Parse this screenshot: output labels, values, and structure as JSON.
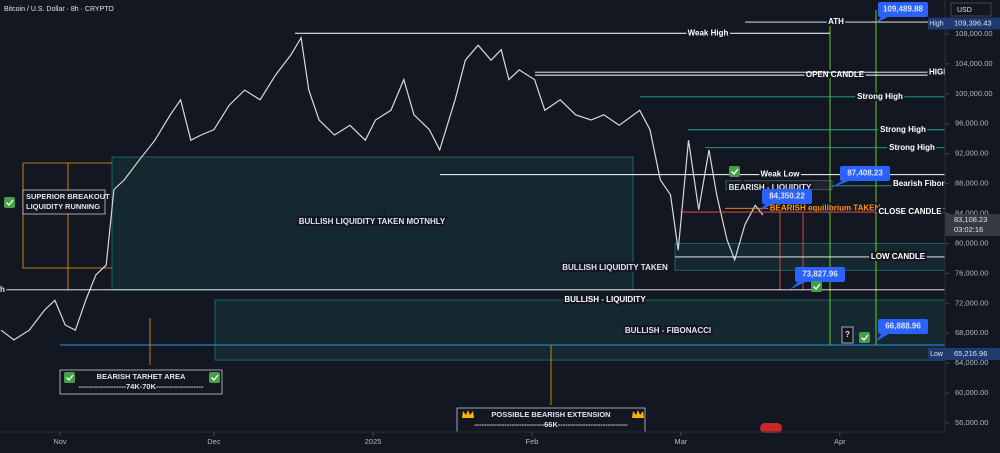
{
  "chart_data": {
    "type": "line",
    "title": "Bitcoin / U.S. Dollar · 8h · CRYPTO",
    "currency": "USD",
    "color": "#d9d9d9",
    "x": [
      -11.5,
      -9,
      -6,
      -3,
      -1,
      1,
      3,
      5,
      7,
      9,
      10.5,
      12.5,
      15.5,
      18.5,
      21.5,
      23.5,
      25.5,
      27.5,
      30,
      33,
      36,
      39,
      42,
      45,
      47,
      48.5,
      50.5,
      53.5,
      56.5,
      59.5,
      61.5,
      64.5,
      67,
      69,
      72,
      74,
      77,
      79,
      81.5,
      84,
      86,
      87.5,
      89.5,
      92.5,
      94.5,
      97.5,
      100.5,
      103.5,
      106,
      109,
      113,
      115,
      117,
      119,
      120.5,
      122.5,
      124.5,
      126.5,
      128,
      130,
      131.5,
      133.5,
      135.5,
      137
    ],
    "values": [
      68400,
      67100,
      68400,
      71100,
      72400,
      69100,
      68400,
      72400,
      75800,
      77100,
      87200,
      88500,
      91200,
      93800,
      97200,
      99200,
      93800,
      94500,
      95200,
      98500,
      100500,
      99200,
      102500,
      105200,
      107500,
      100500,
      96500,
      94500,
      95800,
      93800,
      96500,
      97800,
      101900,
      97200,
      95200,
      92500,
      99200,
      104500,
      106500,
      104500,
      105900,
      101900,
      103200,
      101900,
      97800,
      99200,
      97200,
      96500,
      97200,
      95800,
      97800,
      95200,
      88500,
      86500,
      79100,
      93800,
      84500,
      92500,
      86500,
      80500,
      77800,
      82500,
      85100,
      83800
    ],
    "xlim": [
      -11.7,
      172.5
    ],
    "ylim": [
      54790,
      112545
    ],
    "xticks": [
      {
        "value": 0,
        "label": "Nov"
      },
      {
        "value": 30,
        "label": "Dec"
      },
      {
        "value": 61,
        "label": "2025"
      },
      {
        "value": 92,
        "label": "Feb"
      },
      {
        "value": 121,
        "label": "Mar"
      },
      {
        "value": 152,
        "label": "Apr"
      }
    ],
    "yticks": [
      {
        "value": 56000,
        "label": "56,000.00"
      },
      {
        "value": 60000,
        "label": "60,000.00"
      },
      {
        "value": 64000,
        "label": "64,000.00"
      },
      {
        "value": 68000,
        "label": "68,000.00"
      },
      {
        "value": 72000,
        "label": "72,000.00"
      },
      {
        "value": 76000,
        "label": "76,000.00"
      },
      {
        "value": 80000,
        "label": "80,000.00"
      },
      {
        "value": 84000,
        "label": "84,000.00"
      },
      {
        "value": 88000,
        "label": "88,000.00"
      },
      {
        "value": 92000,
        "label": "92,000.00"
      },
      {
        "value": 96000,
        "label": "96,000.00"
      },
      {
        "value": 100000,
        "label": "100,000.00"
      },
      {
        "value": 104000,
        "label": "104,000.00"
      },
      {
        "value": 108000,
        "label": "108,000.00"
      }
    ],
    "levels": [
      {
        "label": "Weak High",
        "value": 108100,
        "color": "#ffffff"
      },
      {
        "label": "ATH",
        "value": 109600,
        "color": "#ffffff"
      },
      {
        "label": "OPEN CANDLE",
        "value": 102500,
        "color": "#ffffff"
      },
      {
        "label": "HIGH",
        "value": 102900,
        "color": "#ffffff"
      },
      {
        "label": "Strong High",
        "value": 99600,
        "color": "#26a69a"
      },
      {
        "label": "Strong High",
        "value": 95200,
        "color": "#26a69a"
      },
      {
        "label": "Strong High",
        "value": 92800,
        "color": "#26a69a"
      },
      {
        "label": "Weak Low",
        "value": 89200,
        "color": "#ffffff"
      },
      {
        "label": "Bearish Fibonacci",
        "value": 87700,
        "color": "#26a69a"
      },
      {
        "label": "BEARISH equilibrium TAKEN",
        "value": 84700,
        "color": "#ff9800"
      },
      {
        "label": "CLOSE CANDLE",
        "value": 84200,
        "color": "#ff5252"
      },
      {
        "label": "LOW CANDLE",
        "value": 78200,
        "color": "#ffffff"
      },
      {
        "label": "BULLISH - LIQUIDITY",
        "value": 73800,
        "color": "#ffffff"
      }
    ],
    "edge_label": "h",
    "zones": [
      {
        "label": "BULLISH LIQUIDITY TAKEN MOTNHLY",
        "low": 73800,
        "high": 91550
      },
      {
        "label": "BULLISH LIQUIDITY TAKEN",
        "low": 76400,
        "high": 80000
      },
      {
        "label": "BULLISH - FIBONACCI",
        "low": 64400,
        "high": 72440
      },
      {
        "label": "BEARISH - LIQUIDITY",
        "low": 87200,
        "high": 88400
      }
    ],
    "callouts": [
      {
        "value": 109489.88,
        "label": "109,489.88"
      },
      {
        "value": 87408.23,
        "label": "87,408.23"
      },
      {
        "value": 84350.22,
        "label": "84,350.22"
      },
      {
        "value": 73827.96,
        "label": "73,827.96"
      },
      {
        "value": 66888.96,
        "label": "66,888.96"
      }
    ],
    "badges": [
      {
        "label": "High",
        "value": 109396.43,
        "value_label": "109,396.43"
      },
      {
        "label": "Low",
        "value": 65216.96,
        "value_label": "65,216.96"
      }
    ],
    "last_price": {
      "value": 83108.23,
      "label": "83,108.23",
      "countdown": "03:02:16"
    },
    "notes": [
      {
        "lines": [
          "SUPERIOR BREAKOUT",
          "LIQUIDITY RUNNING"
        ]
      },
      {
        "lines": [
          "BEARISH TARHET AREA",
          "-------------------74K-70K-------------------"
        ]
      },
      {
        "lines": [
          "POSSIBLE BEARISH EXTENSION",
          "----------------------------66K----------------------------"
        ]
      }
    ],
    "question_mark": "?"
  }
}
